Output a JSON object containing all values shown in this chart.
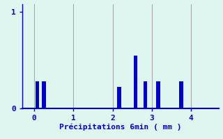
{
  "title": "",
  "xlabel": "Précipitations 6min ( mm )",
  "bar_positions": [
    0.083,
    0.25,
    2.167,
    2.583,
    2.833,
    3.167,
    3.75
  ],
  "bar_heights": [
    0.28,
    0.28,
    0.22,
    0.55,
    0.28,
    0.28,
    0.28
  ],
  "bar_width": 0.1,
  "bar_color": "#0000cc",
  "xlim": [
    -0.3,
    4.7
  ],
  "ylim": [
    0,
    1.08
  ],
  "yticks": [
    0,
    1
  ],
  "xticks": [
    0,
    1,
    2,
    3,
    4
  ],
  "grid_color": "#aaaaaa",
  "bg_color": "#dff5f0",
  "axes_color": "#0000cc",
  "tick_color": "#0000cc",
  "label_color": "#0000cc",
  "label_fontsize": 8,
  "tick_fontsize": 8,
  "figwidth": 3.2,
  "figheight": 2.0,
  "dpi": 100
}
